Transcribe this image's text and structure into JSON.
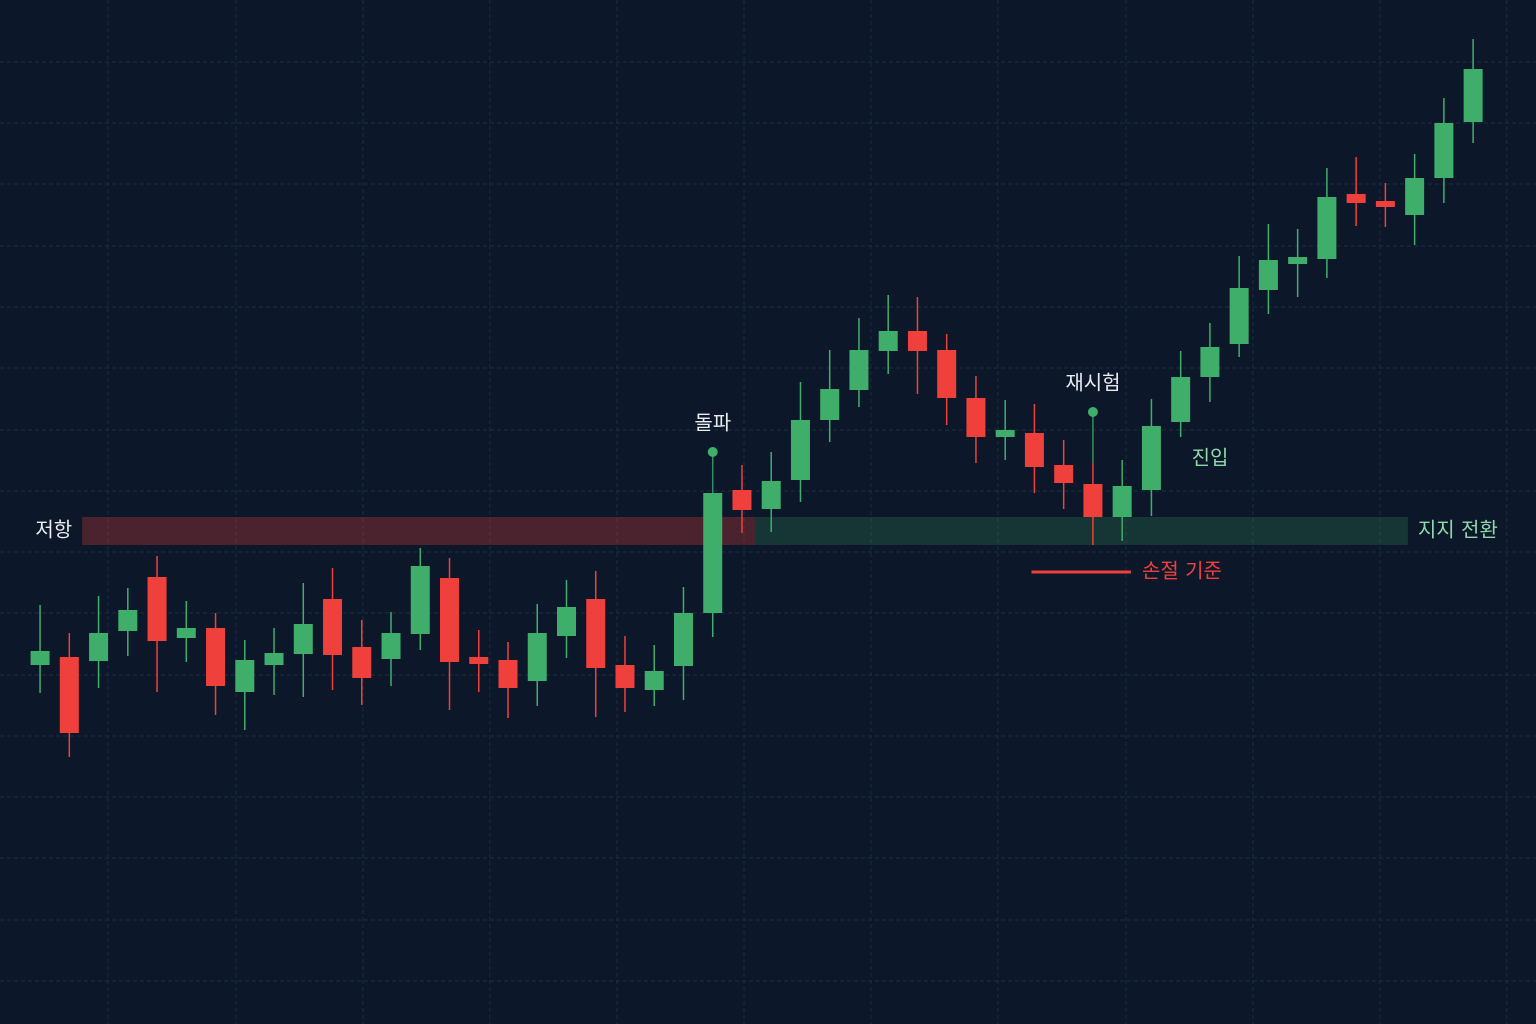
{
  "chart_data": {
    "type": "candlestick",
    "x": [
      0,
      1,
      2,
      3,
      4,
      5,
      6,
      7,
      8,
      9,
      10,
      11,
      12,
      13,
      14,
      15,
      16,
      17,
      18,
      19,
      20,
      21,
      22,
      23,
      24,
      25,
      26,
      27,
      28,
      29,
      30,
      31,
      32,
      33,
      34,
      35,
      36,
      37,
      38,
      39,
      40,
      41,
      42,
      43,
      44,
      45,
      46,
      47,
      48,
      49
    ],
    "open": [
      359,
      367,
      363,
      393,
      447,
      386,
      396,
      332,
      359,
      370,
      425,
      377,
      365,
      390,
      446,
      367,
      364,
      343,
      388,
      425,
      359,
      334,
      358,
      411,
      534,
      515,
      544,
      604,
      634,
      673,
      693,
      674,
      626,
      587,
      591,
      559,
      540,
      507,
      534,
      602,
      647,
      680,
      734,
      760,
      765,
      830,
      823,
      809,
      846,
      902
    ],
    "high": [
      419,
      391,
      428,
      436,
      468,
      423,
      411,
      384,
      396,
      441,
      456,
      404,
      412,
      476,
      466,
      394,
      382,
      420,
      444,
      453,
      388,
      379,
      437,
      531,
      559,
      572,
      642,
      674,
      706,
      729,
      727,
      690,
      648,
      624,
      620,
      584,
      561,
      564,
      625,
      673,
      701,
      768,
      800,
      795,
      856,
      867,
      841,
      870,
      926,
      985
    ],
    "low": [
      331,
      267,
      336,
      368,
      332,
      362,
      309,
      294,
      329,
      327,
      334,
      319,
      338,
      374,
      314,
      332,
      306,
      318,
      366,
      307,
      312,
      318,
      324,
      387,
      491,
      492,
      522,
      582,
      617,
      650,
      630,
      599,
      561,
      564,
      531,
      515,
      479,
      483,
      508,
      587,
      622,
      667,
      710,
      727,
      746,
      798,
      797,
      779,
      821,
      881
    ],
    "close": [
      373,
      291,
      391,
      414,
      383,
      396,
      338,
      364,
      371,
      400,
      369,
      346,
      391,
      458,
      362,
      360,
      336,
      391,
      417,
      356,
      336,
      353,
      411,
      531,
      514,
      543,
      604,
      635,
      674,
      693,
      673,
      626,
      587,
      594,
      557,
      541,
      507,
      538,
      598,
      647,
      677,
      736,
      764,
      767,
      827,
      821,
      817,
      846,
      901,
      955
    ],
    "up_color": "#3fae6b",
    "down_color": "#f0403c",
    "xlim": [
      -1.37,
      51.15
    ],
    "ylim": [
      0,
      1024
    ],
    "xticks": [
      2.32,
      6.7,
      11.04,
      15.38,
      19.73,
      24.07,
      28.41,
      32.75,
      37.13,
      41.47,
      45.81,
      50.15
    ],
    "yticks": [
      43,
      104,
      166,
      227,
      288,
      349,
      411,
      472,
      533,
      594,
      656,
      717,
      778,
      840,
      901,
      962
    ],
    "grid": true,
    "zones": [
      {
        "label": "저항",
        "x": [
          1.44,
          24.44
        ],
        "y": [
          479,
          507
        ],
        "color": "#f0403c",
        "label_side": "left"
      },
      {
        "label": "지지 전환",
        "x": [
          24.44,
          46.77
        ],
        "y": [
          479,
          507
        ],
        "color": "#3fae6b",
        "label_side": "right"
      }
    ],
    "annotations": [
      {
        "text": "돌파",
        "x": 23,
        "y": 572,
        "color": "#3fae6b"
      },
      {
        "text": "재시험",
        "x": 36,
        "y": 612,
        "color": "#3fae6b"
      }
    ],
    "entry": {
      "text": "진입",
      "x": 39,
      "y": 565,
      "color": "#8fd9a8"
    },
    "stop_loss": {
      "label": "손절 기준",
      "x": [
        33.9,
        37.3
      ],
      "y": 452,
      "color": "#f0403c"
    }
  }
}
